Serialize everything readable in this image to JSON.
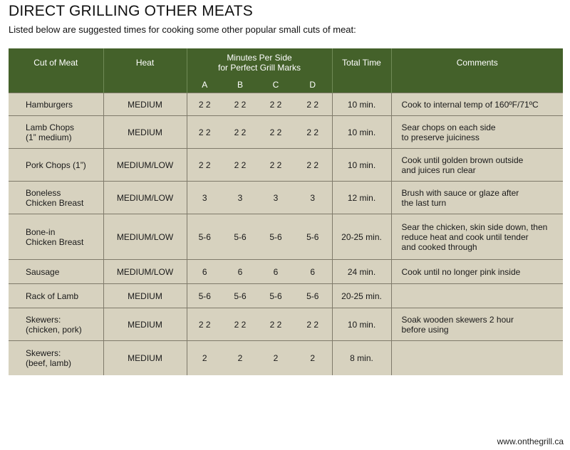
{
  "title": "DIRECT GRILLING OTHER MEATS",
  "subtitle": "Listed below are suggested times for cooking some other popular small cuts of meat:",
  "headers": {
    "cut": "Cut of Meat",
    "heat": "Heat",
    "minutes_line1": "Minutes Per Side",
    "minutes_line2": "for Perfect Grill Marks",
    "total": "Total Time",
    "comments": "Comments",
    "sub": [
      "A",
      "B",
      "C",
      "D"
    ]
  },
  "colors": {
    "header_bg": "#44612a",
    "row_bg": "#d7d2bf"
  },
  "rows": [
    {
      "cut": [
        "Hamburgers"
      ],
      "heat": "MEDIUM",
      "minutes": [
        "2 2",
        "2 2",
        "2 2",
        "2 2"
      ],
      "total": "10 min.",
      "comments": [
        "Cook to internal temp of 160ºF/71ºC"
      ]
    },
    {
      "cut": [
        "Lamb Chops",
        "(1” medium)"
      ],
      "heat": "MEDIUM",
      "minutes": [
        "2 2",
        "2 2",
        "2 2",
        "2 2"
      ],
      "total": "10 min.",
      "comments": [
        "Sear chops on each side",
        "to preserve juiciness"
      ]
    },
    {
      "cut": [
        "Pork Chops (1”)"
      ],
      "heat": "MEDIUM/LOW",
      "minutes": [
        "2 2",
        "2 2",
        "2 2",
        "2 2"
      ],
      "total": "10 min.",
      "comments": [
        "Cook until golden brown outside",
        "and juices run clear"
      ]
    },
    {
      "cut": [
        "Boneless",
        "Chicken Breast"
      ],
      "heat": "MEDIUM/LOW",
      "minutes": [
        "3",
        "3",
        "3",
        "3"
      ],
      "total": "12 min.",
      "comments": [
        "Brush with sauce or glaze after",
        "the last turn"
      ]
    },
    {
      "cut": [
        "Bone-in",
        "Chicken Breast"
      ],
      "heat": "MEDIUM/LOW",
      "minutes": [
        "5-6",
        "5-6",
        "5-6",
        "5-6"
      ],
      "total": "20-25 min.",
      "comments": [
        "Sear the chicken, skin side down, then",
        "reduce heat and cook until tender",
        "and cooked through"
      ]
    },
    {
      "cut": [
        "Sausage"
      ],
      "heat": "MEDIUM/LOW",
      "minutes": [
        "6",
        "6",
        "6",
        "6"
      ],
      "total": "24 min.",
      "comments": [
        "Cook until no longer pink inside"
      ]
    },
    {
      "cut": [
        "Rack of Lamb"
      ],
      "heat": "MEDIUM",
      "minutes": [
        "5-6",
        "5-6",
        "5-6",
        "5-6"
      ],
      "total": "20-25 min.",
      "comments": []
    },
    {
      "cut": [
        "Skewers:",
        "(chicken, pork)"
      ],
      "heat": "MEDIUM",
      "minutes": [
        "2 2",
        "2 2",
        "2 2",
        "2 2"
      ],
      "total": "10 min.",
      "comments": [
        "Soak wooden skewers 2 hour",
        "before using"
      ]
    },
    {
      "cut": [
        "Skewers:",
        "(beef, lamb)"
      ],
      "heat": "MEDIUM",
      "minutes": [
        "2",
        "2",
        "2",
        "2"
      ],
      "total": "8 min.",
      "comments": []
    }
  ],
  "website": "www.onthegrill.ca"
}
